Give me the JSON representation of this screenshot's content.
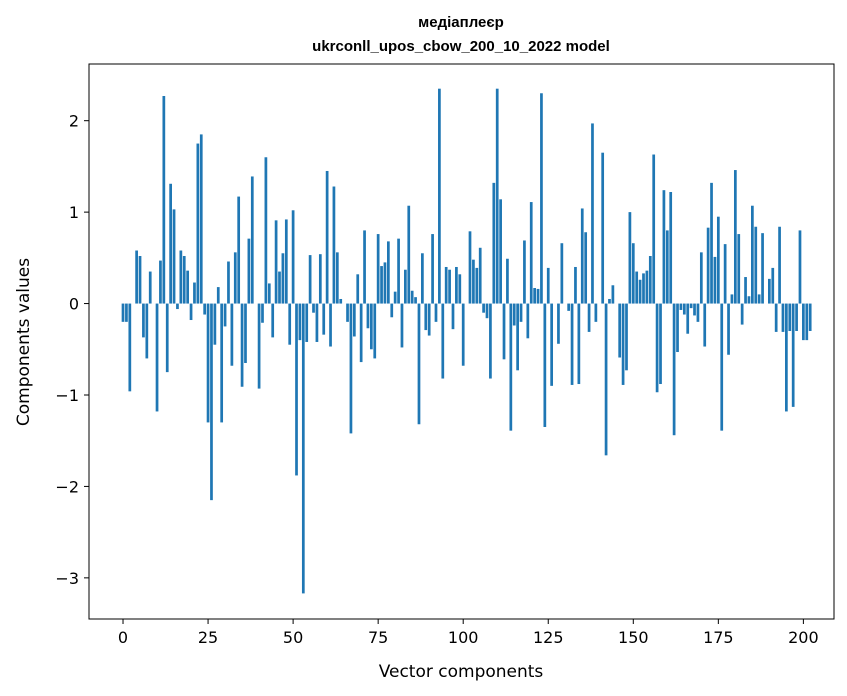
{
  "chart_data": {
    "type": "bar",
    "title_line1": "медіаплеєр",
    "title_line2": "ukrconll_upos_cbow_200_10_2022 model",
    "xlabel": "Vector components",
    "ylabel": "Components values",
    "xlim": [
      -10,
      209
    ],
    "ylim": [
      -3.45,
      2.62
    ],
    "xticks": [
      0,
      25,
      50,
      75,
      100,
      125,
      150,
      175,
      200
    ],
    "yticks": [
      -3,
      -2,
      -1,
      0,
      1,
      2
    ],
    "ytick_labels": [
      "−3",
      "−2",
      "−1",
      "0",
      "1",
      "2"
    ],
    "bar_color": "#1f77b4",
    "values": [
      -0.2,
      -0.2,
      -0.96,
      0.0,
      0.58,
      0.52,
      -0.37,
      -0.6,
      0.35,
      0.0,
      -1.18,
      0.47,
      2.27,
      -0.75,
      1.31,
      1.03,
      -0.06,
      0.58,
      0.52,
      0.36,
      -0.18,
      0.23,
      1.75,
      1.85,
      -0.12,
      -1.3,
      -2.15,
      -0.45,
      0.18,
      -1.3,
      -0.25,
      0.46,
      -0.68,
      0.56,
      1.17,
      -0.91,
      -0.65,
      0.71,
      1.39,
      0.0,
      -0.93,
      -0.21,
      1.6,
      0.22,
      -0.37,
      0.91,
      0.35,
      0.55,
      0.92,
      -0.45,
      1.02,
      -1.88,
      -0.4,
      -3.17,
      -0.42,
      0.53,
      -0.1,
      -0.42,
      0.54,
      -0.34,
      1.45,
      -0.47,
      1.28,
      0.56,
      0.05,
      0.0,
      -0.2,
      -1.42,
      -0.36,
      0.32,
      -0.64,
      0.8,
      -0.27,
      -0.5,
      -0.6,
      0.76,
      0.41,
      0.45,
      0.68,
      -0.15,
      0.13,
      0.71,
      -0.48,
      0.37,
      1.07,
      0.14,
      0.07,
      -1.32,
      0.55,
      -0.29,
      -0.35,
      0.76,
      -0.2,
      2.35,
      -0.82,
      0.4,
      0.37,
      -0.28,
      0.4,
      0.32,
      -0.68,
      0.0,
      0.79,
      0.48,
      0.39,
      0.61,
      -0.1,
      -0.16,
      -0.82,
      1.32,
      2.35,
      1.14,
      -0.61,
      0.49,
      -1.39,
      -0.24,
      -0.73,
      -0.2,
      0.69,
      -0.38,
      1.11,
      0.17,
      0.16,
      2.3,
      -1.35,
      0.39,
      -0.9,
      0.0,
      -0.44,
      0.66,
      0.0,
      -0.08,
      -0.89,
      0.4,
      -0.88,
      1.04,
      0.78,
      -0.31,
      1.97,
      -0.2,
      0.0,
      1.65,
      -1.66,
      0.05,
      0.2,
      0.0,
      -0.59,
      -0.89,
      -0.73,
      1.0,
      0.66,
      0.35,
      0.26,
      0.33,
      0.36,
      0.52,
      1.63,
      -0.97,
      -0.88,
      1.24,
      0.8,
      1.22,
      -1.44,
      -0.53,
      -0.07,
      -0.12,
      -0.33,
      -0.05,
      -0.13,
      -0.2,
      0.56,
      -0.47,
      0.83,
      1.32,
      0.51,
      0.95,
      -1.39,
      0.65,
      -0.56,
      0.1,
      1.46,
      0.76,
      -0.23,
      0.29,
      0.08,
      1.07,
      0.84,
      0.1,
      0.77,
      0.0,
      0.27,
      0.39,
      -0.31,
      0.84,
      -0.31,
      -1.18,
      -0.3,
      -1.13,
      -0.3,
      0.8,
      -0.4,
      -0.4,
      -0.3
    ]
  }
}
